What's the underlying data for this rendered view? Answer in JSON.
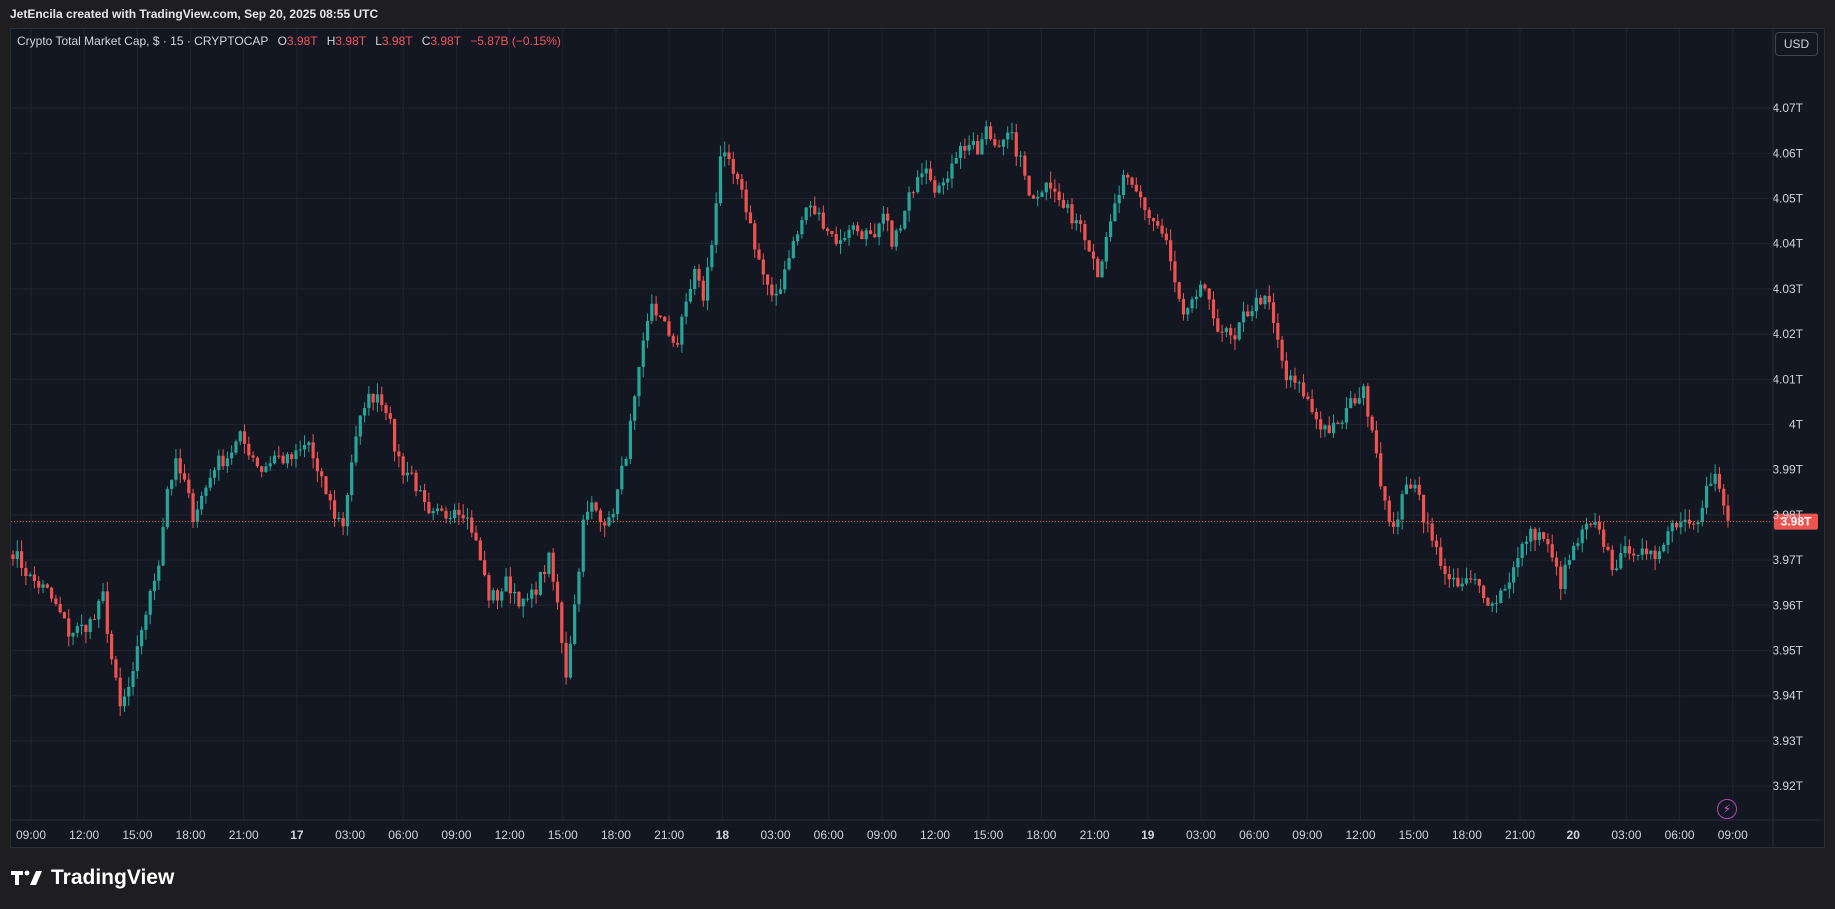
{
  "caption": "JetEncila created with TradingView.com, Sep 20, 2025 08:55 UTC",
  "legend": {
    "symbol": "Crypto Total Market Cap, $ · 15 · CRYPTOCAP",
    "o_label": "O",
    "o_value": "3.98T",
    "h_label": "H",
    "h_value": "3.98T",
    "l_label": "L",
    "l_value": "3.98T",
    "c_label": "C",
    "c_value": "3.98T",
    "change": "−5.87B (−0.15%)"
  },
  "currency_button": "USD",
  "brand": "TradingView",
  "colors": {
    "up": "#26a69a",
    "down": "#ef5350",
    "background": "#131722",
    "grid": "#1f2430",
    "text": "#d1d4dc"
  },
  "chart_data": {
    "type": "candlestick",
    "price_unit": "T",
    "y_ticks": [
      "4.07T",
      "4.06T",
      "4.05T",
      "4.04T",
      "4.03T",
      "4.02T",
      "4.01T",
      "4T",
      "3.99T",
      "3.98T",
      "3.97T",
      "3.96T",
      "3.95T",
      "3.94T",
      "3.93T",
      "3.92T"
    ],
    "y_tick_values": [
      4.07,
      4.06,
      4.05,
      4.04,
      4.03,
      4.02,
      4.01,
      4.0,
      3.99,
      3.98,
      3.97,
      3.96,
      3.95,
      3.94,
      3.93,
      3.92
    ],
    "ylim": [
      3.9125,
      4.0875
    ],
    "x_ticks": [
      "09:00",
      "12:00",
      "15:00",
      "18:00",
      "21:00",
      "17",
      "03:00",
      "06:00",
      "09:00",
      "12:00",
      "15:00",
      "18:00",
      "21:00",
      "18",
      "03:00",
      "06:00",
      "09:00",
      "12:00",
      "15:00",
      "18:00",
      "21:00",
      "19",
      "03:00",
      "06:00",
      "09:00",
      "12:00",
      "15:00",
      "18:00",
      "21:00",
      "20",
      "03:00",
      "06:00",
      "09:00"
    ],
    "interval": "15",
    "last_price": "3.98T",
    "last_price_value": 3.9785,
    "anchors": [
      [
        0,
        3.972
      ],
      [
        4,
        3.966
      ],
      [
        8,
        3.963
      ],
      [
        11,
        3.958
      ],
      [
        13,
        3.954
      ],
      [
        16,
        3.955
      ],
      [
        19,
        3.957
      ],
      [
        21,
        3.962
      ],
      [
        23,
        3.948
      ],
      [
        25,
        3.937
      ],
      [
        28,
        3.944
      ],
      [
        30,
        3.955
      ],
      [
        32,
        3.962
      ],
      [
        34,
        3.97
      ],
      [
        36,
        3.986
      ],
      [
        38,
        3.991
      ],
      [
        40,
        3.987
      ],
      [
        42,
        3.98
      ],
      [
        45,
        3.986
      ],
      [
        47,
        3.991
      ],
      [
        50,
        3.993
      ],
      [
        53,
        3.997
      ],
      [
        56,
        3.993
      ],
      [
        58,
        3.99
      ],
      [
        61,
        3.993
      ],
      [
        64,
        3.992
      ],
      [
        66,
        3.993
      ],
      [
        69,
        3.996
      ],
      [
        71,
        3.989
      ],
      [
        73,
        3.985
      ],
      [
        75,
        3.98
      ],
      [
        77,
        3.978
      ],
      [
        79,
        3.992
      ],
      [
        82,
        4.005
      ],
      [
        85,
        4.007
      ],
      [
        87,
        4.004
      ],
      [
        89,
        3.995
      ],
      [
        91,
        3.99
      ],
      [
        93,
        3.989
      ],
      [
        95,
        3.984
      ],
      [
        97,
        3.979
      ],
      [
        99,
        3.98
      ],
      [
        101,
        3.98
      ],
      [
        103,
        3.982
      ],
      [
        105,
        3.981
      ],
      [
        107,
        3.977
      ],
      [
        109,
        3.97
      ],
      [
        111,
        3.962
      ],
      [
        113,
        3.962
      ],
      [
        115,
        3.965
      ],
      [
        117,
        3.963
      ],
      [
        119,
        3.96
      ],
      [
        121,
        3.962
      ],
      [
        123,
        3.966
      ],
      [
        125,
        3.97
      ],
      [
        127,
        3.96
      ],
      [
        129,
        3.945
      ],
      [
        131,
        3.96
      ],
      [
        133,
        3.978
      ],
      [
        135,
        3.982
      ],
      [
        137,
        3.98
      ],
      [
        139,
        3.978
      ],
      [
        141,
        3.985
      ],
      [
        143,
        3.994
      ],
      [
        145,
        4.005
      ],
      [
        147,
        4.017
      ],
      [
        149,
        4.027
      ],
      [
        151,
        4.023
      ],
      [
        153,
        4.02
      ],
      [
        155,
        4.018
      ],
      [
        157,
        4.027
      ],
      [
        159,
        4.034
      ],
      [
        161,
        4.028
      ],
      [
        163,
        4.04
      ],
      [
        165,
        4.06
      ],
      [
        167,
        4.057
      ],
      [
        169,
        4.053
      ],
      [
        171,
        4.048
      ],
      [
        173,
        4.04
      ],
      [
        175,
        4.033
      ],
      [
        177,
        4.027
      ],
      [
        179,
        4.031
      ],
      [
        181,
        4.038
      ],
      [
        183,
        4.042
      ],
      [
        185,
        4.048
      ],
      [
        187,
        4.047
      ],
      [
        189,
        4.045
      ],
      [
        191,
        4.042
      ],
      [
        193,
        4.04
      ],
      [
        195,
        4.044
      ],
      [
        197,
        4.043
      ],
      [
        199,
        4.042
      ],
      [
        201,
        4.04
      ],
      [
        203,
        4.046
      ],
      [
        205,
        4.041
      ],
      [
        207,
        4.043
      ],
      [
        209,
        4.05
      ],
      [
        211,
        4.056
      ],
      [
        213,
        4.058
      ],
      [
        215,
        4.053
      ],
      [
        217,
        4.052
      ],
      [
        219,
        4.059
      ],
      [
        221,
        4.061
      ],
      [
        223,
        4.062
      ],
      [
        225,
        4.06
      ],
      [
        227,
        4.065
      ],
      [
        229,
        4.062
      ],
      [
        231,
        4.064
      ],
      [
        233,
        4.063
      ],
      [
        235,
        4.058
      ],
      [
        237,
        4.052
      ],
      [
        239,
        4.05
      ],
      [
        241,
        4.055
      ],
      [
        243,
        4.051
      ],
      [
        245,
        4.048
      ],
      [
        247,
        4.046
      ],
      [
        249,
        4.045
      ],
      [
        251,
        4.04
      ],
      [
        253,
        4.034
      ],
      [
        255,
        4.04
      ],
      [
        257,
        4.048
      ],
      [
        259,
        4.054
      ],
      [
        261,
        4.052
      ],
      [
        263,
        4.05
      ],
      [
        265,
        4.046
      ],
      [
        267,
        4.044
      ],
      [
        269,
        4.04
      ],
      [
        271,
        4.031
      ],
      [
        273,
        4.023
      ],
      [
        275,
        4.026
      ],
      [
        277,
        4.031
      ],
      [
        279,
        4.026
      ],
      [
        281,
        4.022
      ],
      [
        283,
        4.02
      ],
      [
        285,
        4.018
      ],
      [
        287,
        4.024
      ],
      [
        289,
        4.026
      ],
      [
        291,
        4.028
      ],
      [
        293,
        4.026
      ],
      [
        295,
        4.018
      ],
      [
        297,
        4.01
      ],
      [
        299,
        4.009
      ],
      [
        301,
        4.007
      ],
      [
        303,
        4.003
      ],
      [
        305,
        4.0
      ],
      [
        307,
        3.999
      ],
      [
        309,
        3.999
      ],
      [
        311,
        4.003
      ],
      [
        313,
        4.006
      ],
      [
        315,
        4.007
      ],
      [
        317,
        4.0
      ],
      [
        319,
        3.988
      ],
      [
        321,
        3.977
      ],
      [
        323,
        3.98
      ],
      [
        325,
        3.986
      ],
      [
        327,
        3.988
      ],
      [
        329,
        3.98
      ],
      [
        331,
        3.974
      ],
      [
        333,
        3.97
      ],
      [
        335,
        3.965
      ],
      [
        337,
        3.964
      ],
      [
        339,
        3.965
      ],
      [
        341,
        3.965
      ],
      [
        343,
        3.963
      ],
      [
        345,
        3.96
      ],
      [
        347,
        3.963
      ],
      [
        349,
        3.966
      ],
      [
        351,
        3.97
      ],
      [
        353,
        3.975
      ],
      [
        355,
        3.976
      ],
      [
        357,
        3.975
      ],
      [
        359,
        3.97
      ],
      [
        361,
        3.965
      ],
      [
        363,
        3.97
      ],
      [
        365,
        3.974
      ],
      [
        367,
        3.977
      ],
      [
        369,
        3.977
      ],
      [
        371,
        3.974
      ],
      [
        373,
        3.969
      ],
      [
        375,
        3.97
      ],
      [
        377,
        3.973
      ],
      [
        379,
        3.972
      ],
      [
        381,
        3.97
      ],
      [
        383,
        3.971
      ],
      [
        385,
        3.975
      ],
      [
        387,
        3.978
      ],
      [
        389,
        3.979
      ],
      [
        391,
        3.979
      ],
      [
        393,
        3.98
      ],
      [
        395,
        3.986
      ],
      [
        397,
        3.988
      ],
      [
        399,
        3.982
      ],
      [
        400,
        3.978
      ]
    ]
  }
}
